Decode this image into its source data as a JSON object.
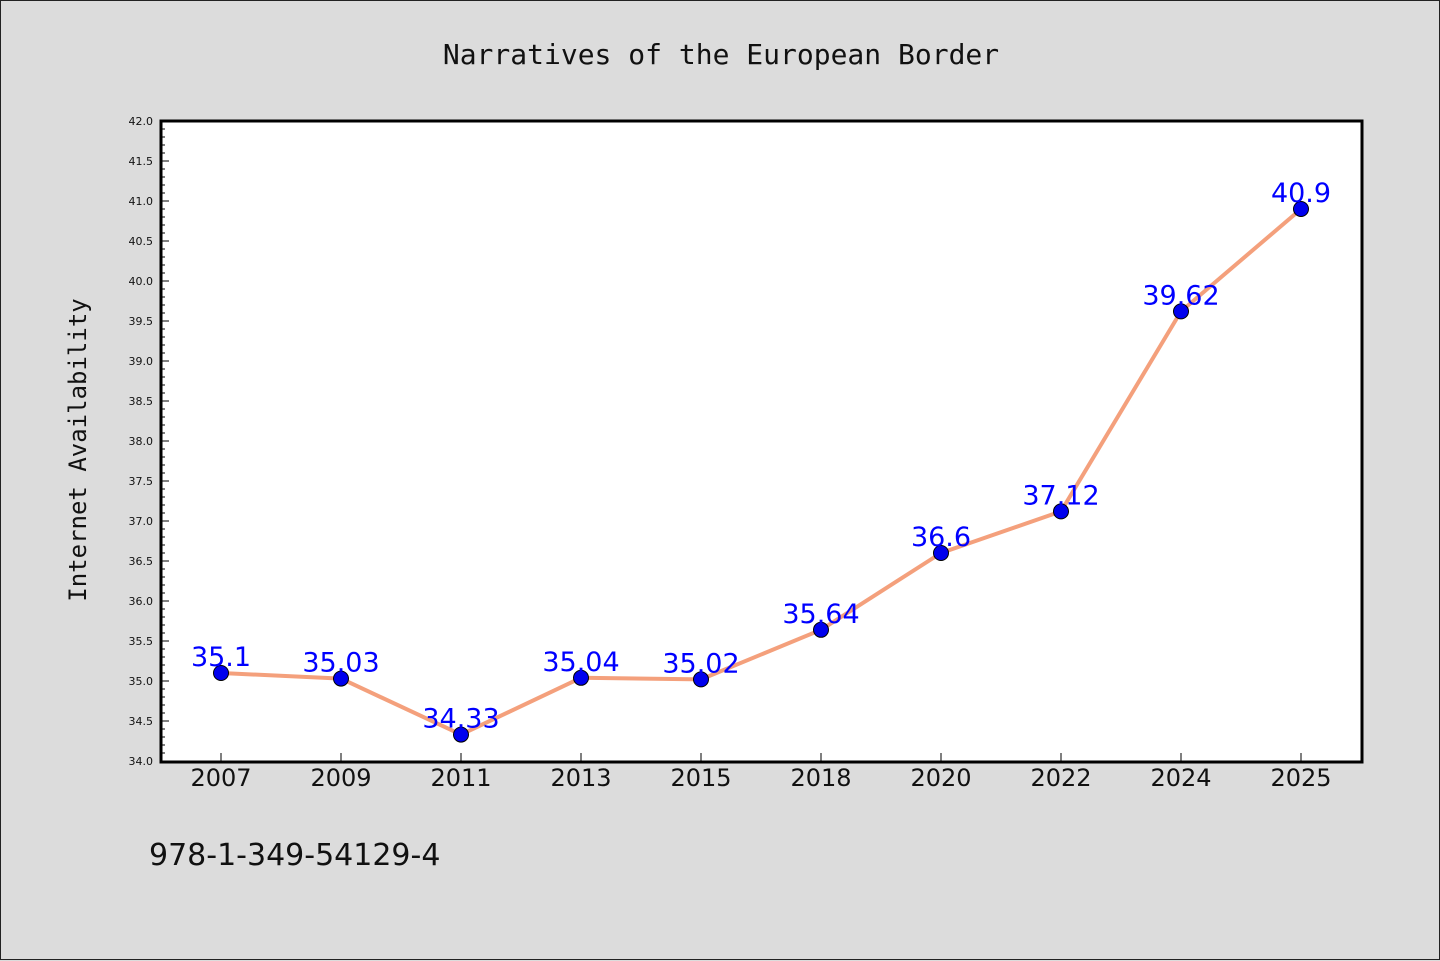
{
  "chart_data": {
    "type": "line",
    "title": "Narratives of the European Border",
    "xlabel": "",
    "ylabel": "Internet Availability",
    "categories": [
      "2007",
      "2009",
      "2011",
      "2013",
      "2015",
      "2018",
      "2020",
      "2022",
      "2024",
      "2025"
    ],
    "values": [
      35.1,
      35.03,
      34.33,
      35.04,
      35.02,
      35.64,
      36.6,
      37.12,
      39.62,
      40.9
    ],
    "data_labels": [
      "35.1",
      "35.03",
      "34.33",
      "35.04",
      "35.02",
      "35.64",
      "36.6",
      "37.12",
      "39.62",
      "40.9"
    ],
    "ylim": [
      34.0,
      42.0
    ],
    "yticks": [
      "34.0",
      "34.5",
      "35.0",
      "35.5",
      "36.0",
      "36.5",
      "37.0",
      "37.5",
      "38.0",
      "38.5",
      "39.0",
      "39.5",
      "40.0",
      "40.5",
      "41.0",
      "41.5",
      "42.0"
    ],
    "grid": false,
    "line_color": "#f4a07c",
    "marker_color": "#0000ee",
    "label_color": "#0000ff"
  },
  "footer_text": "978-1-349-54129-4"
}
